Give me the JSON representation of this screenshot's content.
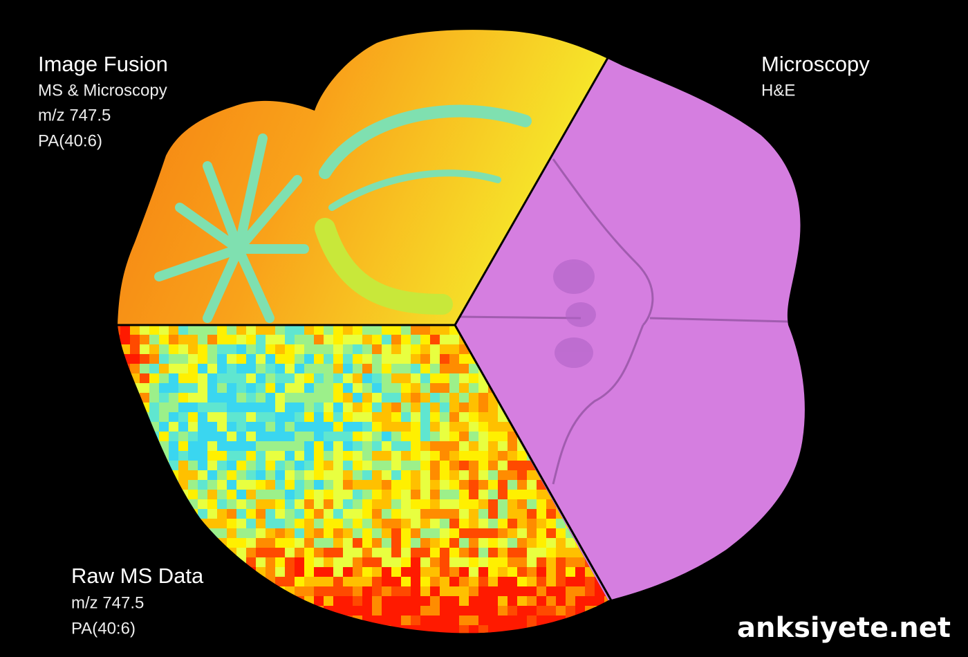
{
  "panels": [
    {
      "title": "Image Fusion",
      "lines": [
        "MS & Microscopy",
        "m/z 747.5",
        "PA(40:6)"
      ]
    },
    {
      "title": "Microscopy",
      "lines": [
        "H&E"
      ]
    },
    {
      "title": "Raw MS Data",
      "lines": [
        "m/z 747.5",
        "PA(40:6)"
      ]
    }
  ],
  "watermark": "anksiyete.net"
}
